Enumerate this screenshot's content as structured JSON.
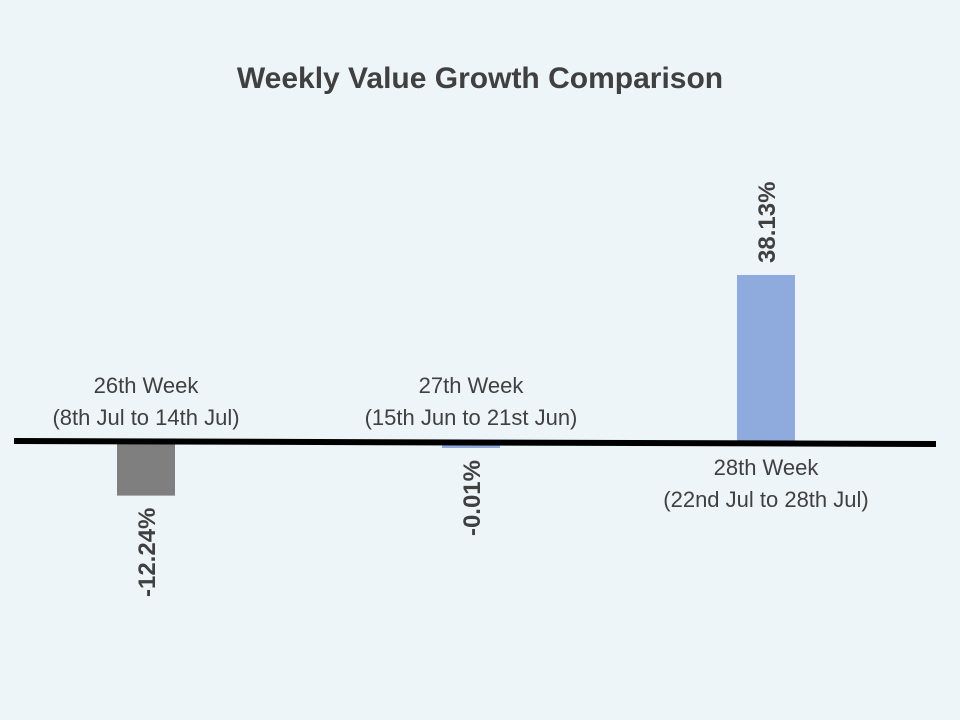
{
  "chart_data": {
    "type": "bar",
    "title": "Weekly Value Growth Comparison",
    "xlabel": "",
    "ylabel": "",
    "categories": [
      {
        "line1": "26th Week",
        "line2": "(8th Jul to 14th Jul)"
      },
      {
        "line1": "27th Week",
        "line2": "(15th Jun to 21st Jun)"
      },
      {
        "line1": "28th Week",
        "line2": "(22nd Jul to 28th Jul)"
      }
    ],
    "values": [
      -12.24,
      -0.01,
      38.13
    ],
    "value_labels": [
      "-12.24%",
      "-0.01%",
      "38.13%"
    ],
    "ylim": [
      -20,
      50
    ],
    "grid": false,
    "legend": "none",
    "colors": [
      "#7f7f7f",
      "#8faadc",
      "#8faadc"
    ],
    "axis_color": "#000000"
  }
}
